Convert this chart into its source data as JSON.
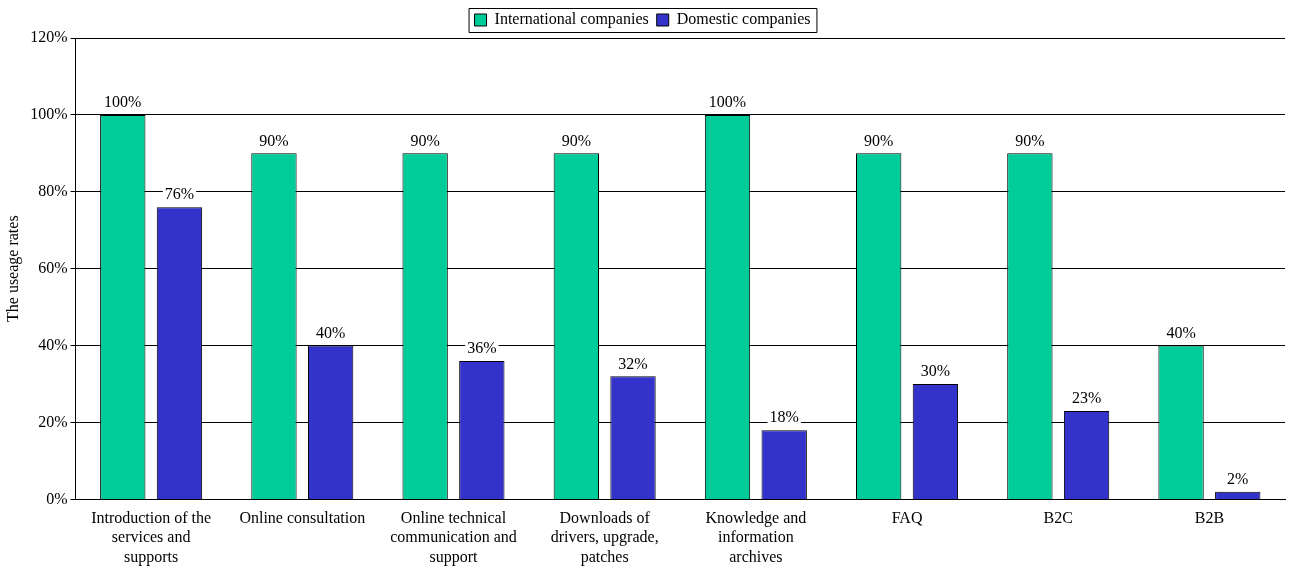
{
  "chart_data": {
    "type": "bar",
    "ylabel": "The useage rates",
    "categories": [
      "Introduction of the services and supports",
      "Online consultation",
      "Online technical communication and support",
      "Downloads of drivers, upgrade, patches",
      "Knowledge and information archives",
      "FAQ",
      "B2C",
      "B2B"
    ],
    "series": [
      {
        "name": "International companies",
        "color": "#00cc99",
        "values": [
          100,
          90,
          90,
          90,
          100,
          90,
          90,
          40
        ],
        "value_labels": [
          "100%",
          "90%",
          "90%",
          "90%",
          "100%",
          "90%",
          "90%",
          "40%"
        ]
      },
      {
        "name": "Domestic companies",
        "color": "#3333cc",
        "values": [
          76,
          40,
          36,
          32,
          18,
          30,
          23,
          2
        ],
        "value_labels": [
          "76%",
          "40%",
          "36%",
          "32%",
          "18%",
          "30%",
          "23%",
          "2%"
        ]
      }
    ],
    "ylim": [
      0,
      120
    ],
    "yticks": [
      {
        "value": 0,
        "label": "0%"
      },
      {
        "value": 20,
        "label": "20%"
      },
      {
        "value": 40,
        "label": "40%"
      },
      {
        "value": 60,
        "label": "60%"
      },
      {
        "value": 80,
        "label": "80%"
      },
      {
        "value": 100,
        "label": "100%"
      },
      {
        "value": 120,
        "label": "120%"
      }
    ],
    "grid": "y",
    "legend": "top"
  }
}
